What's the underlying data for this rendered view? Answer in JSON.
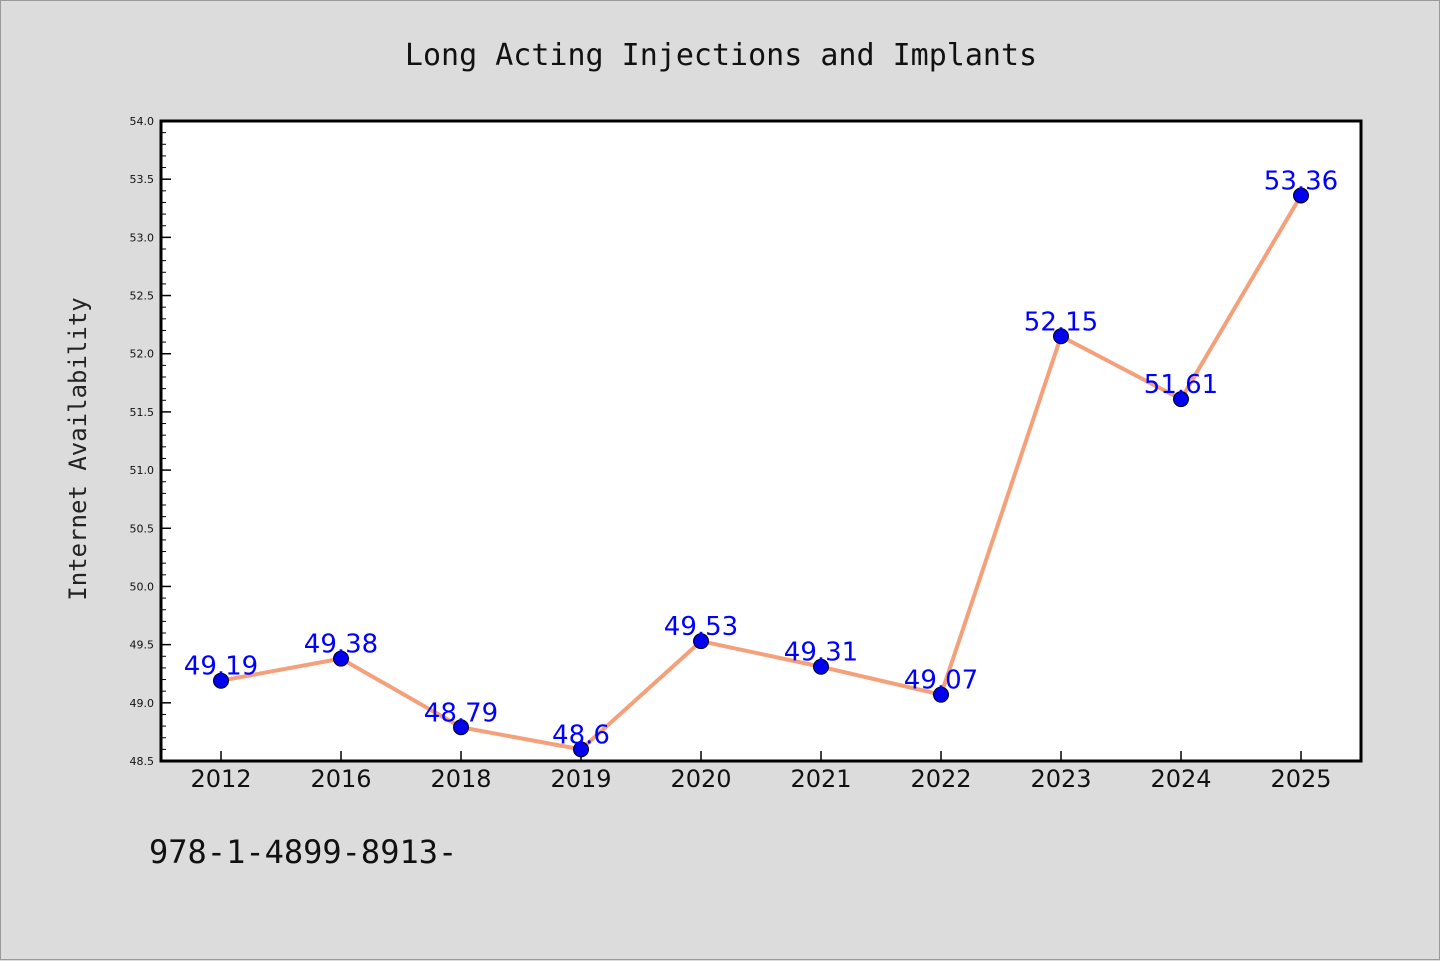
{
  "colors": {
    "background": "#dcdcdc",
    "plot_background": "#ffffff",
    "line": "#f4a07a",
    "marker": "#0000ee",
    "data_label": "#0000ff"
  },
  "footer_code": "978-1-4899-8913-",
  "chart_data": {
    "type": "line",
    "title": "Long Acting Injections and Implants",
    "xlabel": "",
    "ylabel": "Internet Availability",
    "categories": [
      "2012",
      "2016",
      "2018",
      "2019",
      "2020",
      "2021",
      "2022",
      "2023",
      "2024",
      "2025"
    ],
    "values": [
      49.19,
      49.38,
      48.79,
      48.6,
      49.53,
      49.31,
      49.07,
      52.15,
      51.61,
      53.36
    ],
    "data_labels": [
      "49.19",
      "49.38",
      "48.79",
      "48.6",
      "49.53",
      "49.31",
      "49.07",
      "52.15",
      "51.61",
      "53.36"
    ],
    "ylim": [
      48.5,
      54.0
    ],
    "yticks": [
      "48.5",
      "49.0",
      "49.5",
      "50.0",
      "50.5",
      "51.0",
      "51.5",
      "52.0",
      "52.5",
      "53.0",
      "53.5",
      "54.0"
    ],
    "grid": false,
    "legend": "none"
  }
}
